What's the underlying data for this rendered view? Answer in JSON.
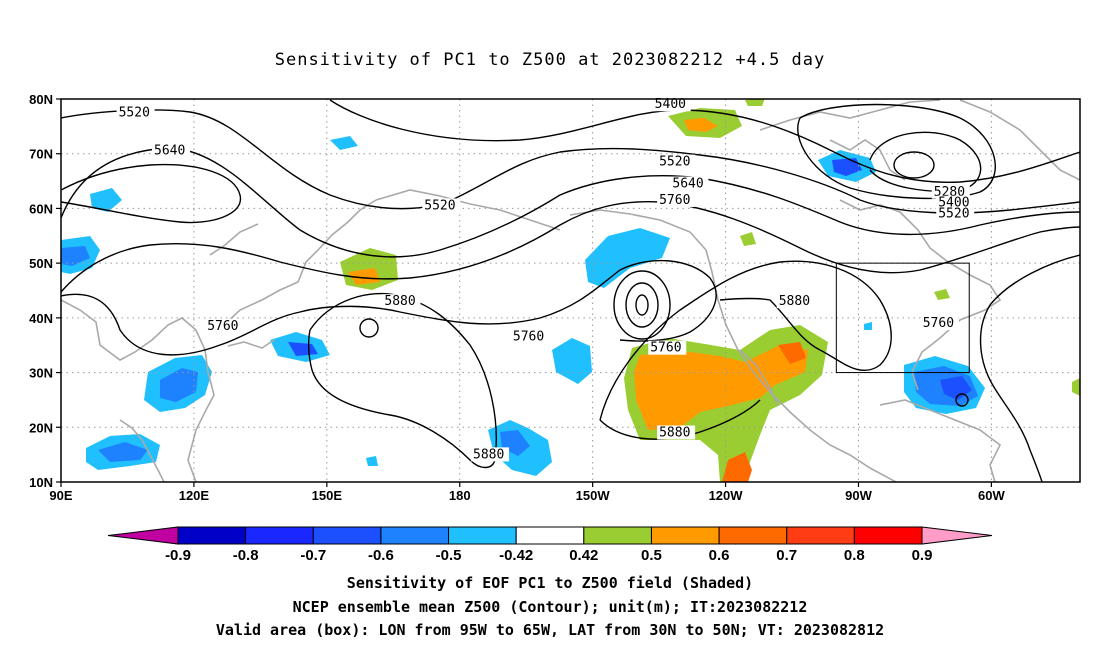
{
  "title": "Sensitivity of PC1 to Z500 at 2023082212 +4.5 day",
  "lon_labels": [
    {
      "lon": 90,
      "label": "90E"
    },
    {
      "lon": 120,
      "label": "120E"
    },
    {
      "lon": 150,
      "label": "150E"
    },
    {
      "lon": 180,
      "label": "180"
    },
    {
      "lon": 210,
      "label": "150W"
    },
    {
      "lon": 240,
      "label": "120W"
    },
    {
      "lon": 270,
      "label": "90W"
    },
    {
      "lon": 300,
      "label": "60W"
    }
  ],
  "lat_labels": [
    {
      "lat": 80,
      "label": "80N"
    },
    {
      "lat": 70,
      "label": "70N"
    },
    {
      "lat": 60,
      "label": "60N"
    },
    {
      "lat": 50,
      "label": "50N"
    },
    {
      "lat": 40,
      "label": "40N"
    },
    {
      "lat": 30,
      "label": "30N"
    },
    {
      "lat": 20,
      "label": "20N"
    },
    {
      "lat": 10,
      "label": "10N"
    }
  ],
  "colorbar": {
    "labels": [
      "-0.9",
      "-0.8",
      "-0.7",
      "-0.6",
      "-0.5",
      "-0.42",
      "0.42",
      "0.5",
      "0.6",
      "0.7",
      "0.8",
      "0.9"
    ],
    "colors": [
      "#c000a0",
      "#0000c8",
      "#1a28ff",
      "#1c50ff",
      "#1e82ff",
      "#20c0ff",
      "#ffffff",
      "#9acd32",
      "#ff9b00",
      "#ff6a00",
      "#ff3c14",
      "#ff0000",
      "#ff9cc8"
    ]
  },
  "contour_labels": [
    {
      "text": "5520",
      "lon": 103,
      "lat": 77
    },
    {
      "text": "5640",
      "lon": 111,
      "lat": 70
    },
    {
      "text": "5520",
      "lon": 172,
      "lat": 60
    },
    {
      "text": "5400",
      "lon": 224,
      "lat": 78.5
    },
    {
      "text": "5520",
      "lon": 225,
      "lat": 68
    },
    {
      "text": "5640",
      "lon": 228,
      "lat": 64
    },
    {
      "text": "5760",
      "lon": 225,
      "lat": 61
    },
    {
      "text": "5880",
      "lon": 163,
      "lat": 42.5
    },
    {
      "text": "5760",
      "lon": 123,
      "lat": 38
    },
    {
      "text": "5760",
      "lon": 192,
      "lat": 36
    },
    {
      "text": "5760",
      "lon": 223,
      "lat": 34
    },
    {
      "text": "5880",
      "lon": 252,
      "lat": 42.5
    },
    {
      "text": "5760",
      "lon": 284.5,
      "lat": 38.5
    },
    {
      "text": "5880",
      "lon": 225,
      "lat": 18.5
    },
    {
      "text": "5880",
      "lon": 183,
      "lat": 14.5
    },
    {
      "text": "5280",
      "lon": 287,
      "lat": 62.5
    },
    {
      "text": "5400",
      "lon": 288,
      "lat": 60.5
    },
    {
      "text": "5520",
      "lon": 288,
      "lat": 58.5
    }
  ],
  "valid_box": {
    "lon_min": 265,
    "lon_max": 295,
    "lat_min": 30,
    "lat_max": 50
  },
  "captions": {
    "line1": "Sensitivity of EOF PC1 to Z500 field (Shaded)",
    "line2": "NCEP ensemble mean Z500 (Contour); unit(m); IT:2023082212",
    "line3": "Valid area (box): LON from 95W to 65W, LAT from 30N to 50N; VT: 2023082812"
  }
}
